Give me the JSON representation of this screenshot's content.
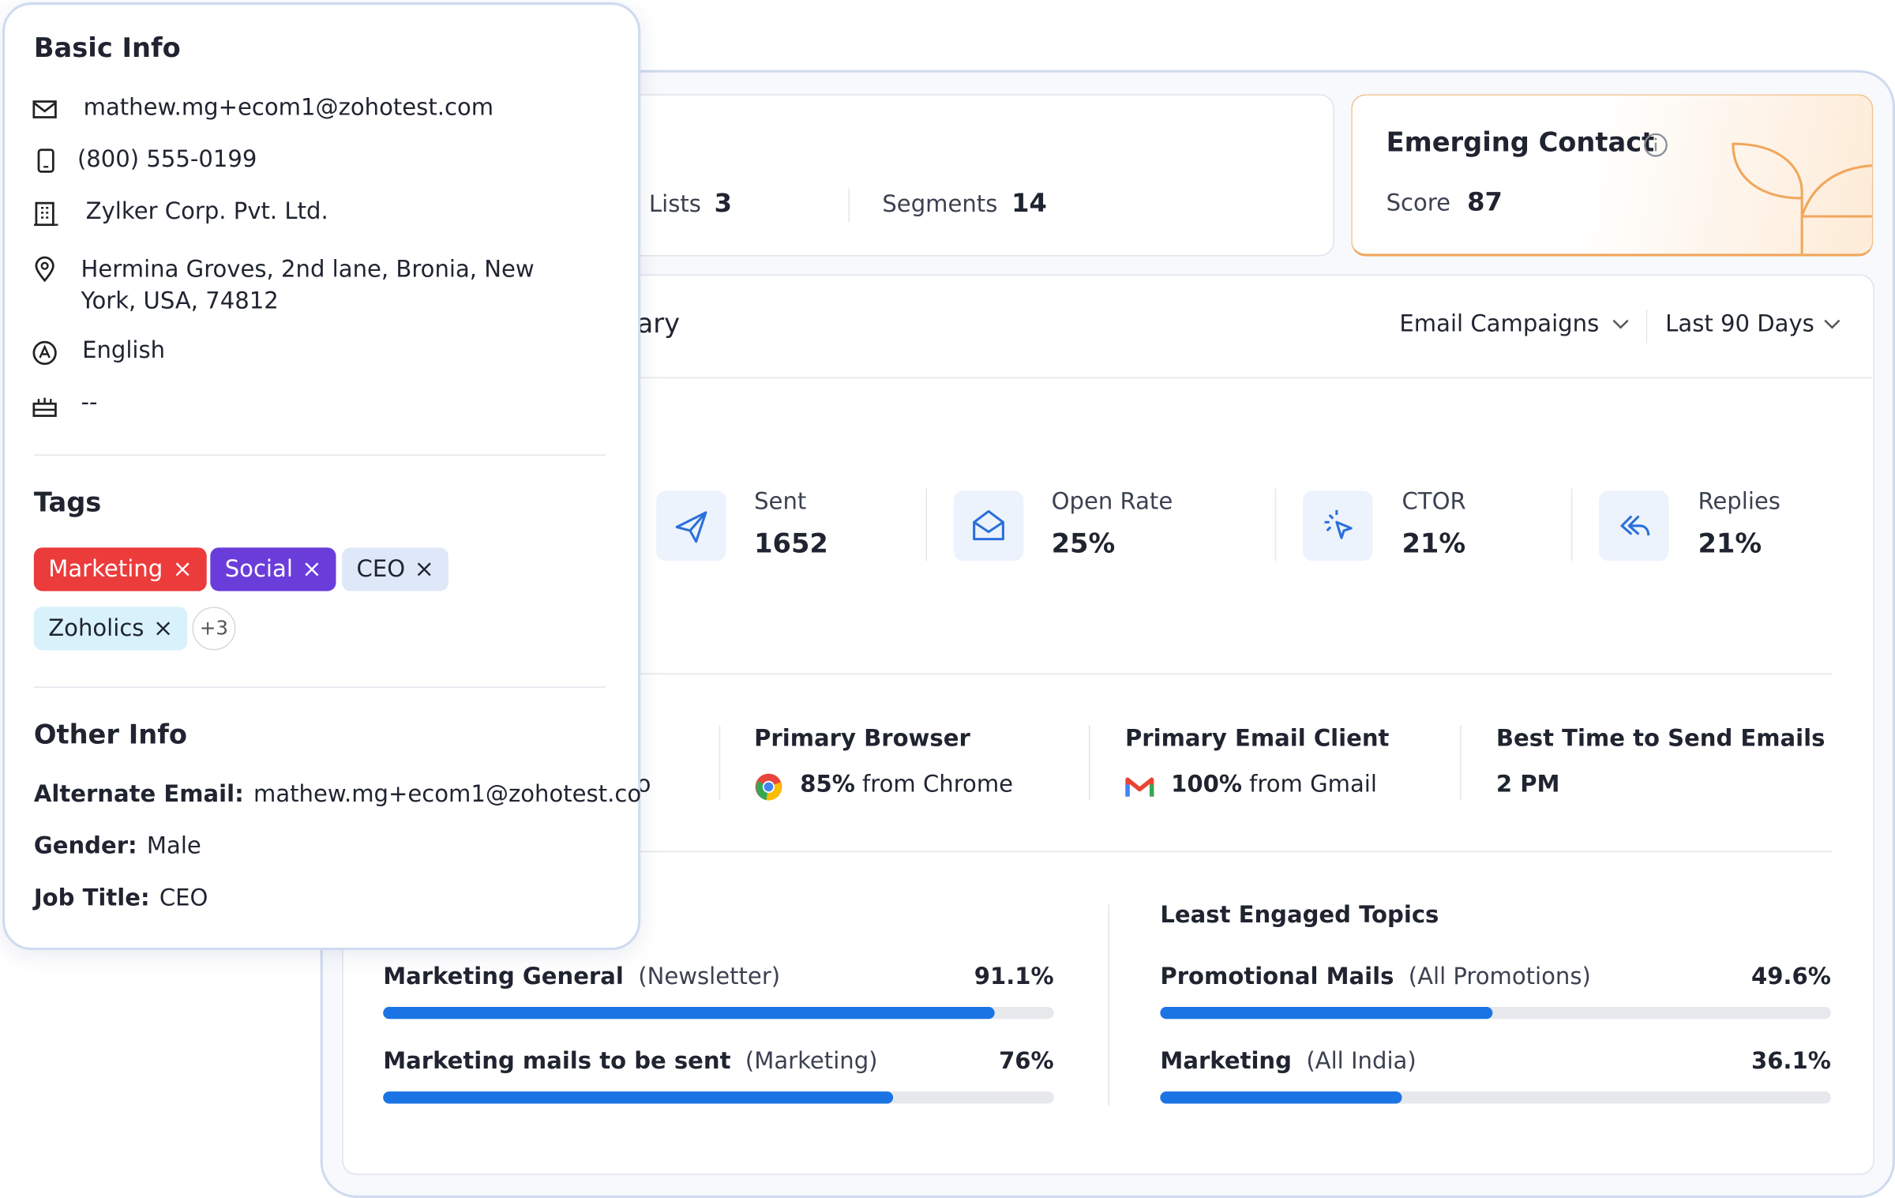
{
  "basic_info": {
    "title": "Basic Info",
    "email": "mathew.mg+ecom1@zohotest.com",
    "phone": "(800) 555-0199",
    "company": "Zylker Corp. Pvt. Ltd.",
    "address": "Hermina Groves, 2nd lane, Bronia, New York, USA, 74812",
    "language": "English",
    "birthday": "--"
  },
  "tags": {
    "title": "Tags",
    "items": [
      {
        "label": "Marketing",
        "bg": "#ec3b3b",
        "color": "#ffffff"
      },
      {
        "label": "Social",
        "bg": "#6a3ddb",
        "color": "#ffffff"
      },
      {
        "label": "CEO",
        "bg": "#dfe8f8",
        "color": "#1f2430"
      },
      {
        "label": "Zoholics",
        "bg": "#d9f1fb",
        "color": "#1f2430"
      }
    ],
    "more": "+3"
  },
  "other_info": {
    "title": "Other Info",
    "items": [
      {
        "label": "Alternate Email:",
        "value": "mathew.mg+ecom1@zohotest.co"
      },
      {
        "label": "Gender:",
        "value": "Male"
      },
      {
        "label": "Job Title:",
        "value": "CEO"
      }
    ]
  },
  "membership": {
    "lists_label": "Lists",
    "lists": "3",
    "segments_label": "Segments",
    "segments": "14"
  },
  "emerging": {
    "title": "Emerging Contact",
    "score_label": "Score",
    "score": "87"
  },
  "summary": {
    "title": "ary",
    "filters": [
      "Email Campaigns",
      "Last 90 Days"
    ],
    "stats": [
      {
        "label": "Sent",
        "value": "1652"
      },
      {
        "label": "Open Rate",
        "value": "25%"
      },
      {
        "label": "CTOR",
        "value": "21%"
      },
      {
        "label": "Replies",
        "value": "21%"
      }
    ],
    "insights_cut": "o",
    "insights": [
      {
        "label": "Primary Browser",
        "value": "85%",
        "text": "from Chrome"
      },
      {
        "label": "Primary Email Client",
        "value": "100%",
        "text": "from Gmail"
      },
      {
        "label": "Best Time to Send Emails",
        "value": "2 PM",
        "text": null
      }
    ],
    "most_engaged": [
      {
        "name": "Marketing General",
        "category": "(Newsletter)",
        "value": 91.1,
        "label": "91.1%"
      },
      {
        "name": "Marketing mails to be sent",
        "category": "(Marketing)",
        "value": 76,
        "label": "76%"
      }
    ],
    "least_title": "Least Engaged Topics",
    "least_engaged": [
      {
        "name": "Promotional Mails",
        "category": "(All Promotions)",
        "value": 49.6,
        "label": "49.6%"
      },
      {
        "name": "Marketing",
        "category": "(All India)",
        "value": 36.1,
        "label": "36.1%"
      }
    ]
  }
}
